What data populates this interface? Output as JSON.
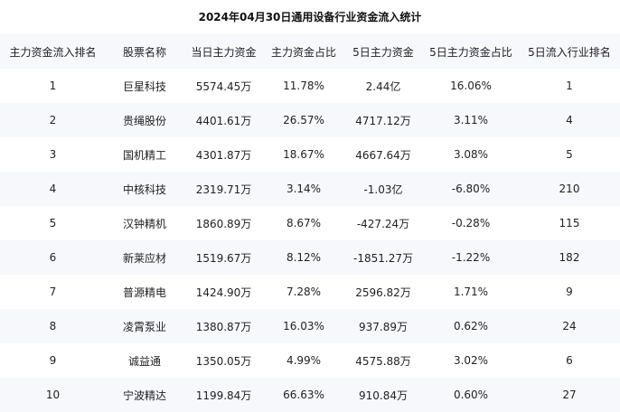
{
  "title": "2024年04月30日通用设备行业资金流入统计",
  "table": {
    "headers": [
      "主力资金流入排名",
      "股票名称",
      "当日主力资金",
      "主力资金占比",
      "5日主力资金",
      "5日主力资金占比",
      "5日流入行业排名"
    ],
    "rows": [
      [
        "1",
        "巨星科技",
        "5574.45万",
        "11.78%",
        "2.44亿",
        "16.06%",
        "1"
      ],
      [
        "2",
        "贵绳股份",
        "4401.61万",
        "26.57%",
        "4717.12万",
        "3.11%",
        "4"
      ],
      [
        "3",
        "国机精工",
        "4301.87万",
        "18.67%",
        "4667.64万",
        "3.08%",
        "5"
      ],
      [
        "4",
        "中核科技",
        "2319.71万",
        "3.14%",
        "-1.03亿",
        "-6.80%",
        "210"
      ],
      [
        "5",
        "汉钟精机",
        "1860.89万",
        "8.67%",
        "-427.24万",
        "-0.28%",
        "115"
      ],
      [
        "6",
        "新莱应材",
        "1519.67万",
        "8.12%",
        "-1851.27万",
        "-1.22%",
        "182"
      ],
      [
        "7",
        "普源精电",
        "1424.90万",
        "7.28%",
        "2596.82万",
        "1.71%",
        "9"
      ],
      [
        "8",
        "凌霄泵业",
        "1380.87万",
        "16.03%",
        "937.89万",
        "0.62%",
        "24"
      ],
      [
        "9",
        "诚益通",
        "1350.05万",
        "4.99%",
        "4575.88万",
        "3.02%",
        "6"
      ],
      [
        "10",
        "宁波精达",
        "1199.84万",
        "66.63%",
        "910.84万",
        "0.60%",
        "27"
      ]
    ]
  }
}
